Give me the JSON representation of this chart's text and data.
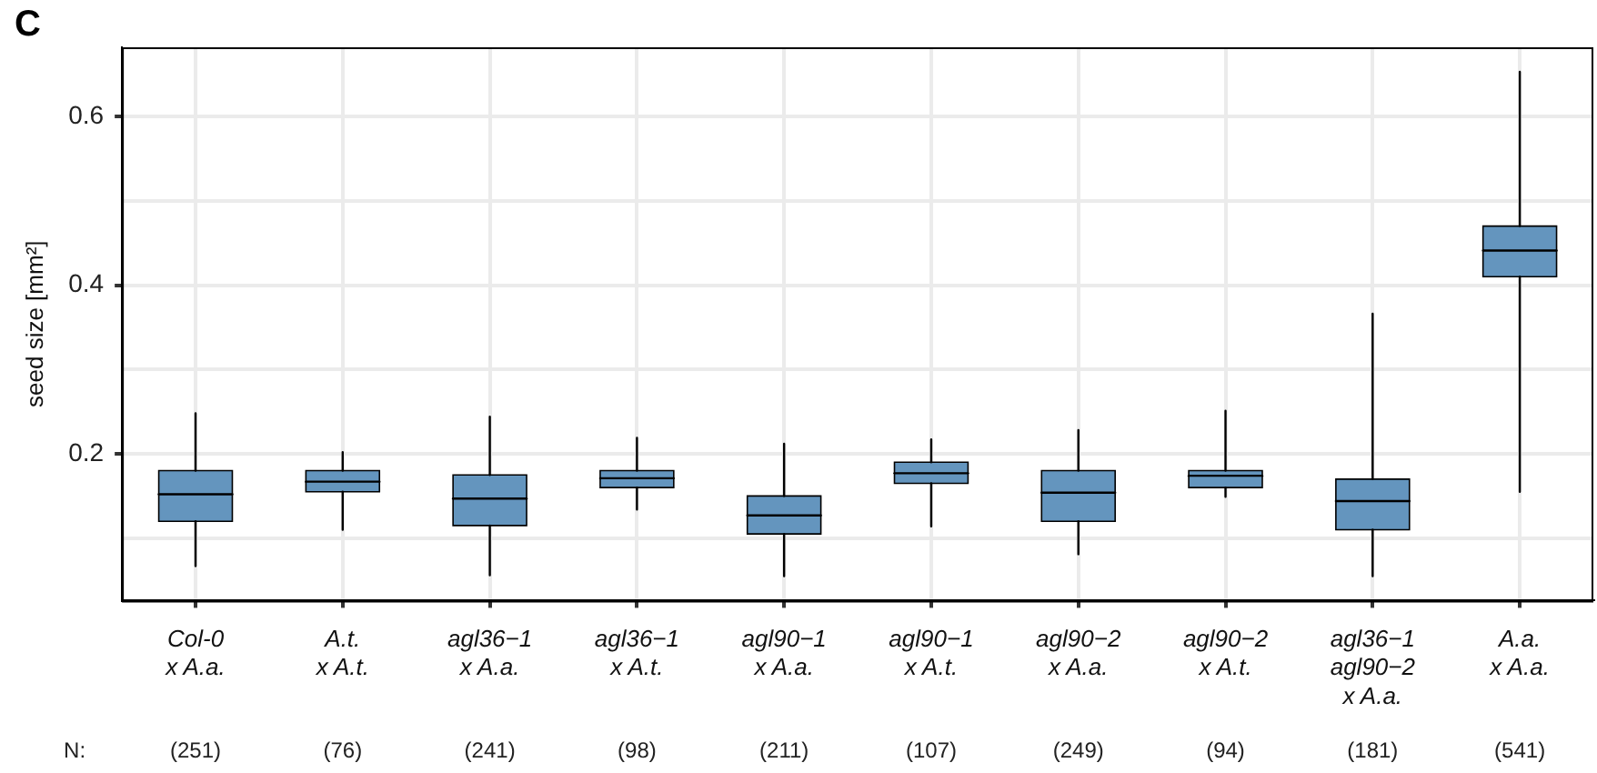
{
  "chart_data": {
    "type": "box",
    "title": "C",
    "ylabel": "seed size [mm²]",
    "categories": [
      "Col-0\nx A.a.",
      "A.t.\nx A.t.",
      "agl36−1\nx A.a.",
      "agl36−1\nx A.t.",
      "agl90−1\nx A.a.",
      "agl90−1\nx A.t.",
      "agl90−2\nx A.a.",
      "agl90−2\nx A.t.",
      "agl36−1\nagl90−2\nx A.a.",
      "A.a.\nx A.a."
    ],
    "boxes": [
      {
        "low": 0.067,
        "q1": 0.12,
        "median": 0.152,
        "q3": 0.18,
        "high": 0.248
      },
      {
        "low": 0.11,
        "q1": 0.155,
        "median": 0.167,
        "q3": 0.18,
        "high": 0.202
      },
      {
        "low": 0.056,
        "q1": 0.115,
        "median": 0.147,
        "q3": 0.175,
        "high": 0.244
      },
      {
        "low": 0.134,
        "q1": 0.16,
        "median": 0.171,
        "q3": 0.18,
        "high": 0.219
      },
      {
        "low": 0.055,
        "q1": 0.105,
        "median": 0.127,
        "q3": 0.15,
        "high": 0.212
      },
      {
        "low": 0.114,
        "q1": 0.165,
        "median": 0.177,
        "q3": 0.19,
        "high": 0.217
      },
      {
        "low": 0.081,
        "q1": 0.12,
        "median": 0.154,
        "q3": 0.18,
        "high": 0.228
      },
      {
        "low": 0.149,
        "q1": 0.16,
        "median": 0.174,
        "q3": 0.18,
        "high": 0.251
      },
      {
        "low": 0.055,
        "q1": 0.11,
        "median": 0.144,
        "q3": 0.17,
        "high": 0.366
      },
      {
        "low": 0.155,
        "q1": 0.41,
        "median": 0.441,
        "q3": 0.47,
        "high": 0.653
      }
    ],
    "color": "#6495be",
    "ylim": [
      0.026,
      0.682
    ],
    "yticks": [
      {
        "value": 0.1,
        "label": null
      },
      0.2,
      {
        "value": 0.3,
        "label": null
      },
      0.4,
      {
        "value": 0.5,
        "label": null
      },
      0.6
    ],
    "grid": true,
    "legend": false,
    "annotations": [
      "N:",
      "(251)",
      "(76)",
      "(241)",
      "(98)",
      "(211)",
      "(107)",
      "(249)",
      "(94)",
      "(181)",
      "(541)"
    ]
  }
}
